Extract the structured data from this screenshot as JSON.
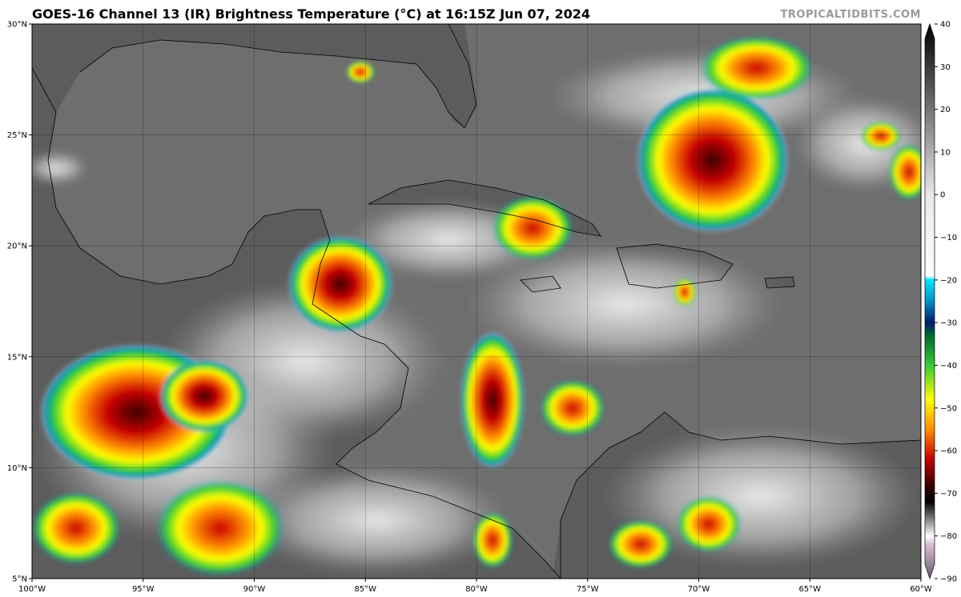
{
  "title": "GOES-16 Channel 13 (IR) Brightness Temperature (°C) at 16:15Z Jun 07, 2024",
  "source": "TROPICALTIDBITS.COM",
  "map": {
    "lon_range": [
      -100,
      -60
    ],
    "lat_range": [
      5,
      30
    ],
    "lon_ticks": [
      {
        "value": -100,
        "label": "100°W"
      },
      {
        "value": -95,
        "label": "95°W"
      },
      {
        "value": -90,
        "label": "90°W"
      },
      {
        "value": -85,
        "label": "85°W"
      },
      {
        "value": -80,
        "label": "80°W"
      },
      {
        "value": -75,
        "label": "75°W"
      },
      {
        "value": -70,
        "label": "70°W"
      },
      {
        "value": -65,
        "label": "65°W"
      },
      {
        "value": -60,
        "label": "60°W"
      }
    ],
    "lat_ticks": [
      {
        "value": 30,
        "label": "30°N"
      },
      {
        "value": 25,
        "label": "25°N"
      },
      {
        "value": 20,
        "label": "20°N"
      },
      {
        "value": 15,
        "label": "15°N"
      },
      {
        "value": 10,
        "label": "10°N"
      },
      {
        "value": 5,
        "label": "5°N"
      }
    ],
    "gridlines": true,
    "colors": {
      "ocean": "#6e6e6e",
      "land": "#5a5a5a",
      "cold_top": "#c80000",
      "coastline": "#000000"
    }
  },
  "colorbar": {
    "range": [
      -90,
      40
    ],
    "ticks": [
      {
        "value": 40,
        "label": "40"
      },
      {
        "value": 30,
        "label": "30"
      },
      {
        "value": 20,
        "label": "20"
      },
      {
        "value": 10,
        "label": "10"
      },
      {
        "value": 0,
        "label": "0"
      },
      {
        "value": -10,
        "label": "−10"
      },
      {
        "value": -20,
        "label": "−20"
      },
      {
        "value": -30,
        "label": "−30"
      },
      {
        "value": -40,
        "label": "−40"
      },
      {
        "value": -50,
        "label": "−50"
      },
      {
        "value": -60,
        "label": "−60"
      },
      {
        "value": -70,
        "label": "−70"
      },
      {
        "value": -80,
        "label": "−80"
      },
      {
        "value": -90,
        "label": "−90"
      }
    ],
    "stops": [
      {
        "value": 40,
        "color": "#000000"
      },
      {
        "value": 0,
        "color": "#e8e8e8"
      },
      {
        "value": -19,
        "color": "#ffffff"
      },
      {
        "value": -20,
        "color": "#00e5ff"
      },
      {
        "value": -25,
        "color": "#0090c8"
      },
      {
        "value": -30,
        "color": "#001a70"
      },
      {
        "value": -33,
        "color": "#006a30"
      },
      {
        "value": -40,
        "color": "#33cc33"
      },
      {
        "value": -48,
        "color": "#ffff00"
      },
      {
        "value": -55,
        "color": "#ff8c00"
      },
      {
        "value": -62,
        "color": "#c80000"
      },
      {
        "value": -68,
        "color": "#3a0000"
      },
      {
        "value": -72,
        "color": "#000000"
      },
      {
        "value": -80,
        "color": "#ffffff"
      },
      {
        "value": -82,
        "color": "#d8bcd8"
      },
      {
        "value": -90,
        "color": "#6a5a6a"
      }
    ]
  }
}
